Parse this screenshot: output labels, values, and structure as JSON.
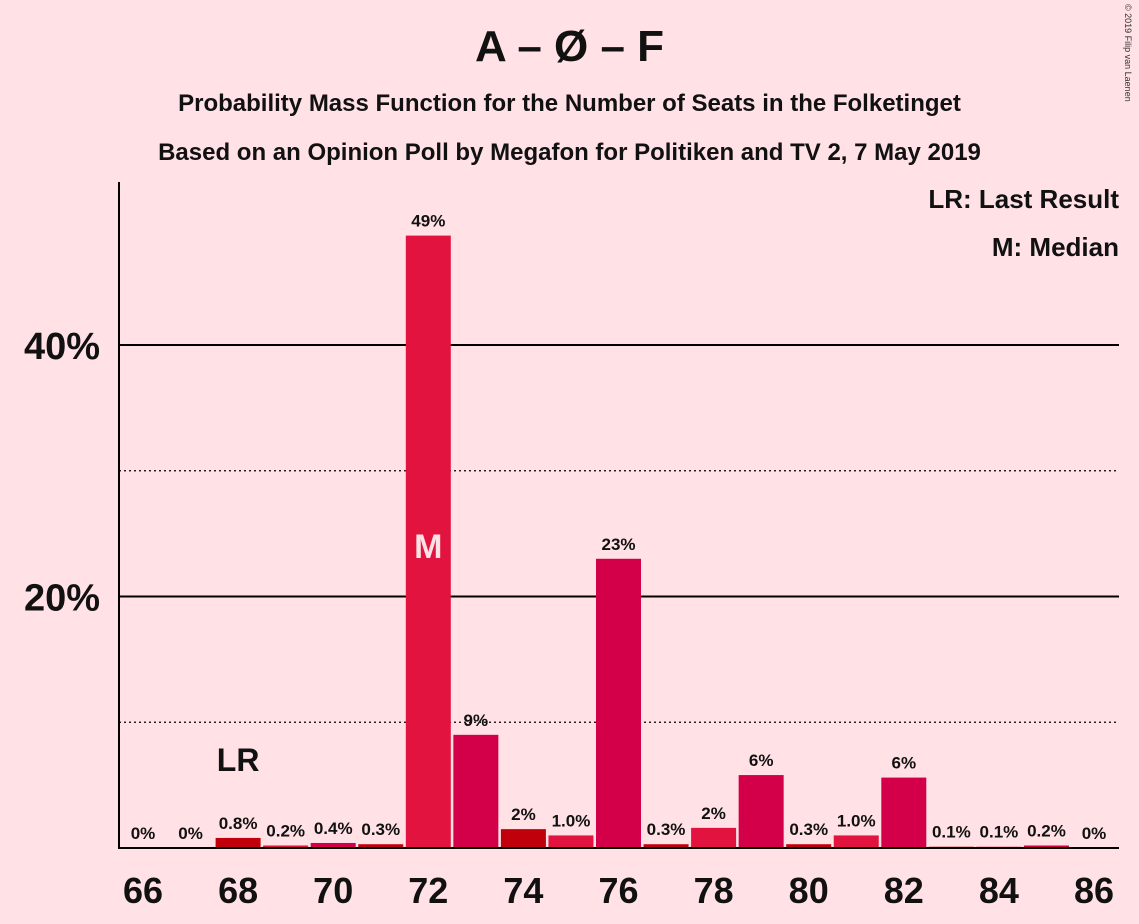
{
  "chart_data": {
    "type": "bar",
    "title": "A – Ø – F",
    "subtitle": "Probability Mass Function for the Number of Seats in the Folketinget",
    "subtitle2": "Based on an Opinion Poll by Megafon for Politiken and TV 2, 7 May 2019",
    "copyright": "© 2019 Filip van Laenen",
    "legend": {
      "last_result": "LR: Last Result",
      "median": "M: Median",
      "placement": "top-right"
    },
    "xlabel": "",
    "ylabel": "",
    "ylim": [
      0,
      53
    ],
    "yticks": [
      {
        "value": 10,
        "label": "",
        "style": "dotted"
      },
      {
        "value": 20,
        "label": "20%",
        "style": "solid"
      },
      {
        "value": 30,
        "label": "",
        "style": "dotted"
      },
      {
        "value": 40,
        "label": "40%",
        "style": "solid"
      }
    ],
    "xtick_labels": [
      "66",
      "68",
      "70",
      "72",
      "74",
      "76",
      "78",
      "80",
      "82",
      "84",
      "86"
    ],
    "categories": [
      66,
      67,
      68,
      69,
      70,
      71,
      72,
      73,
      74,
      75,
      76,
      77,
      78,
      79,
      80,
      81,
      82,
      83,
      84,
      85,
      86
    ],
    "values": [
      0,
      0,
      0.8,
      0.2,
      0.4,
      0.3,
      48.7,
      9.0,
      1.5,
      1.0,
      23.0,
      0.3,
      1.6,
      5.8,
      0.3,
      1.0,
      5.6,
      0.1,
      0.1,
      0.2,
      0
    ],
    "labels": [
      "0%",
      "0%",
      "0.8%",
      "0.2%",
      "0.4%",
      "0.3%",
      "49%",
      "9%",
      "2%",
      "1.0%",
      "23%",
      "0.3%",
      "2%",
      "6%",
      "0.3%",
      "1.0%",
      "6%",
      "0.1%",
      "0.1%",
      "0.2%",
      "0%"
    ],
    "colors": [
      "#E3133F",
      "#E3133F",
      "#C0000B",
      "#E3133F",
      "#D30049",
      "#C0000B",
      "#E3133F",
      "#D30049",
      "#C0000B",
      "#E3133F",
      "#D30049",
      "#C0000B",
      "#E3133F",
      "#D30049",
      "#C0000B",
      "#E3133F",
      "#D30049",
      "#C0000B",
      "#E3133F",
      "#D30049",
      "#C0000B"
    ],
    "last_result": {
      "seats": 68,
      "marker": "LR"
    },
    "median": {
      "seats": 72,
      "marker": "M"
    }
  }
}
